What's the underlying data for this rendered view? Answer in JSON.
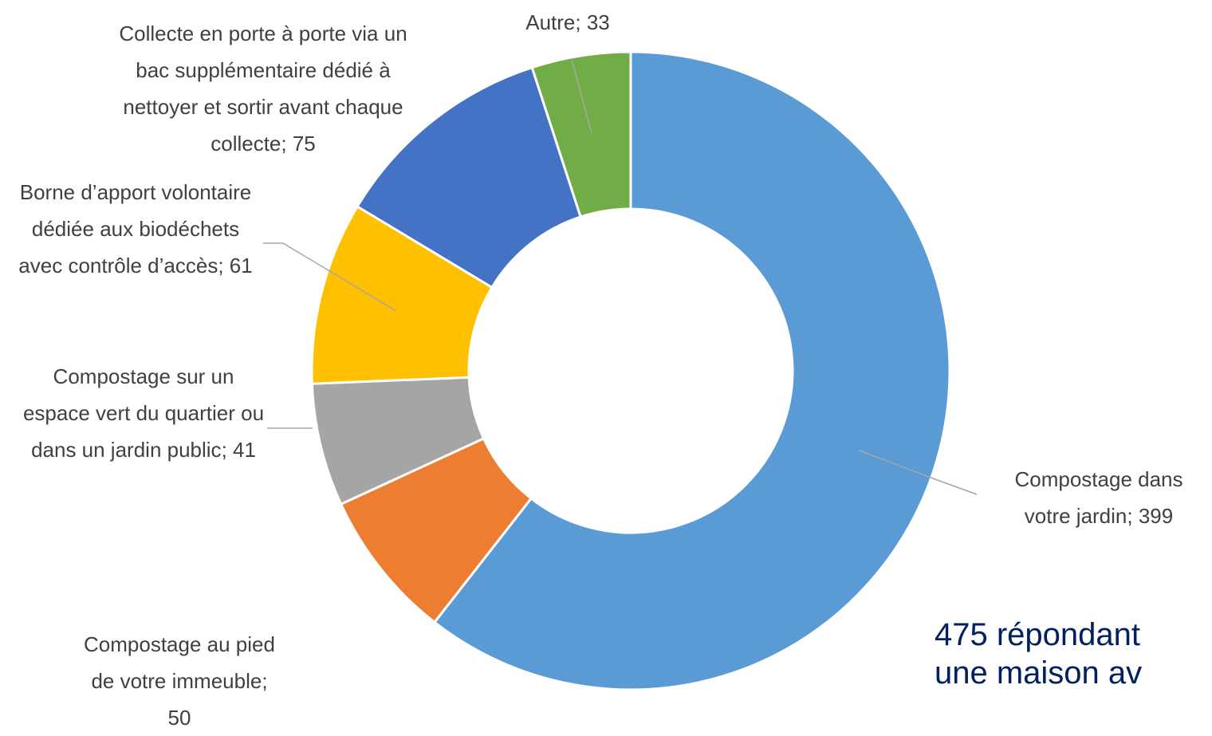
{
  "chart_data": {
    "type": "donut",
    "categories": [
      "Compostage dans votre jardin",
      "Compostage au pied de votre immeuble",
      "Compostage sur un espace vert du quartier ou dans un jardin public",
      "Borne d’apport volontaire dédiée aux biodéchets avec contrôle d’accès",
      "Collecte en porte à porte via un bac supplémentaire dédié à nettoyer et sortir avant chaque collecte",
      "Autre"
    ],
    "values": [
      399,
      50,
      41,
      61,
      75,
      33
    ],
    "colors": [
      "#5b9bd5",
      "#ed7d31",
      "#a5a5a5",
      "#ffc000",
      "#4472c4",
      "#70ad47"
    ],
    "label_separator": "; ",
    "annotation": [
      "475 répondant",
      "une maison av"
    ]
  }
}
